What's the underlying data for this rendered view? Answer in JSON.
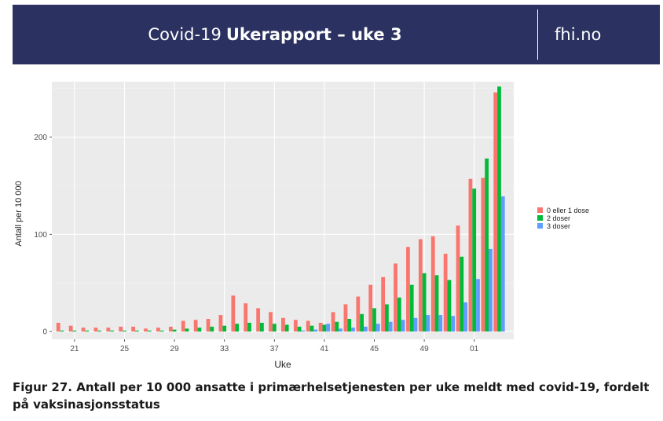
{
  "header": {
    "title_regular": "Covid-19",
    "title_bold": "Ukerapport – uke 3",
    "site": "fhi.no",
    "background": "#2b3261"
  },
  "caption": "Figur 27. Antall per 10 000 ansatte i primærhelsetjenesten per uke meldt med covid-19, fordelt på vaksinasjonsstatus",
  "chart_data": {
    "type": "bar",
    "xlabel": "Uke",
    "ylabel": "Antall per 10 000",
    "ylim": [
      -8,
      257
    ],
    "yticks": [
      0,
      100,
      200
    ],
    "grid": true,
    "legend_position": "right",
    "panel_background": "#ebebeb",
    "categories": [
      "20",
      "21",
      "22",
      "23",
      "24",
      "25",
      "26",
      "27",
      "28",
      "29",
      "30",
      "31",
      "32",
      "33",
      "34",
      "35",
      "36",
      "37",
      "38",
      "39",
      "40",
      "41",
      "42",
      "43",
      "44",
      "45",
      "46",
      "47",
      "48",
      "49",
      "50",
      "51",
      "52",
      "01",
      "02",
      "03"
    ],
    "xtick_labels": [
      "21",
      "25",
      "29",
      "33",
      "37",
      "41",
      "45",
      "49",
      "01"
    ],
    "series": [
      {
        "name": "0 eller 1 dose",
        "color": "#f8766d",
        "values": [
          9,
          6,
          4,
          4,
          4,
          5,
          5,
          3,
          4,
          5,
          11,
          12,
          13,
          17,
          37,
          29,
          24,
          20,
          14,
          12,
          11,
          9,
          20,
          28,
          36,
          48,
          56,
          70,
          87,
          95,
          98,
          80,
          109,
          157,
          158,
          246
        ]
      },
      {
        "name": "2 doser",
        "color": "#00ba38",
        "values": [
          1,
          1,
          1,
          1,
          1,
          1,
          1,
          1,
          1,
          2,
          3,
          4,
          5,
          6,
          8,
          9,
          9,
          8,
          7,
          5,
          6,
          7,
          10,
          13,
          18,
          24,
          28,
          35,
          48,
          60,
          58,
          53,
          77,
          147,
          178,
          252
        ]
      },
      {
        "name": "3 doser",
        "color": "#619cff",
        "values": [
          0,
          0,
          0,
          0,
          0,
          0,
          0,
          0,
          0,
          0,
          0,
          0,
          0,
          0,
          0,
          0,
          0,
          0,
          0,
          1,
          2,
          8,
          3,
          4,
          5,
          8,
          10,
          12,
          14,
          17,
          17,
          16,
          30,
          54,
          85,
          139
        ]
      }
    ]
  }
}
